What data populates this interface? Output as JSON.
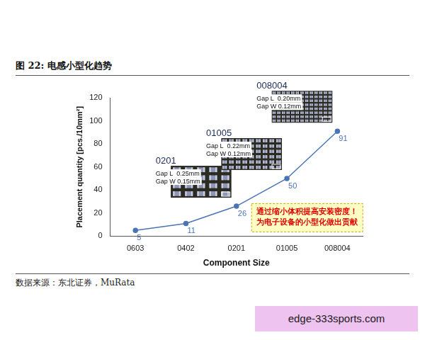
{
  "chart_data": {
    "type": "line",
    "title": "图 22: 电感小型化趋势",
    "categories": [
      "0603",
      "0402",
      "0201",
      "01005",
      "008004"
    ],
    "values": [
      5,
      11,
      26,
      50,
      91
    ],
    "color": "#4a74b4",
    "marker": "circle",
    "x_label": "Component Size",
    "y_label": "Placement quantity [pcs./10mm²]",
    "ylim": [
      0,
      120
    ],
    "yticks": [
      0,
      20,
      40,
      60,
      80,
      100,
      120
    ],
    "grid": false,
    "data_labels": true,
    "annotations": [
      {
        "label": "0201",
        "lines": [
          "Gap L  0.25mm",
          "Gap W 0.15mm"
        ]
      },
      {
        "label": "01005",
        "lines": [
          "Gap L  0.22mm",
          "Gap W 0.12mm"
        ]
      },
      {
        "label": "008004",
        "lines": [
          "Gap L  0.20mm",
          "Gap W 0.12mm"
        ]
      }
    ],
    "callout": [
      "通过缩小体积提高安装密度！",
      "为电子设备的小型化做出贡献"
    ],
    "source": "数据来源：东北证券，MuRata",
    "watermark": "edge-333sports.com"
  }
}
